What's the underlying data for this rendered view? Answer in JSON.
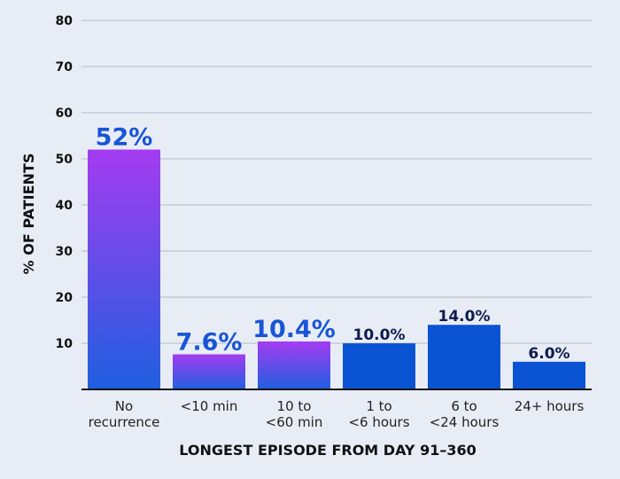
{
  "chart_data": {
    "type": "bar",
    "ylabel": "% OF PATIENTS",
    "xlabel": "LONGEST EPISODE FROM DAY 91–360",
    "ylim": [
      0,
      80
    ],
    "yticks": [
      10,
      20,
      30,
      40,
      50,
      60,
      70,
      80
    ],
    "grid": true,
    "categories": [
      [
        "No",
        "recurrence"
      ],
      [
        "<10 min"
      ],
      [
        "10 to",
        "<60 min"
      ],
      [
        "1 to",
        "<6 hours"
      ],
      [
        "6 to",
        "<24 hours"
      ],
      [
        "24+ hours"
      ]
    ],
    "values": [
      52,
      7.6,
      10.4,
      10.0,
      14.0,
      6.0
    ],
    "data_labels": [
      "52%",
      "7.6%",
      "10.4%",
      "10.0%",
      "14.0%",
      "6.0%"
    ],
    "colors": {
      "gradient_top": "#a43cf0",
      "gradient_bottom": "#1f5fe0",
      "solid": "#0a54d4",
      "grid": "#c6ccd8",
      "label_highlight": "#1a55d6",
      "label_dark": "#0d1b4f"
    },
    "gradient_bars": [
      0,
      1,
      2
    ]
  }
}
